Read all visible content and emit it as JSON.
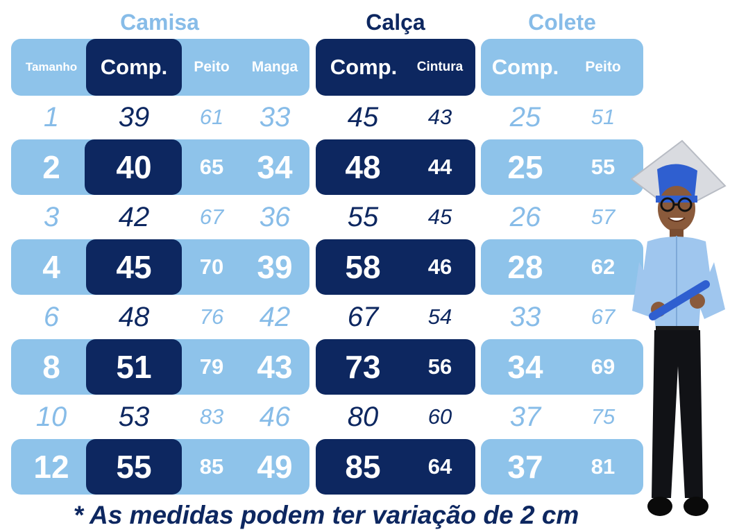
{
  "sections": {
    "camisa": "Camisa",
    "calca": "Calça",
    "colete": "Colete"
  },
  "headers": {
    "camisa": [
      "Tamanho",
      "Comp.",
      "Peito",
      "Manga"
    ],
    "calca": [
      "Comp.",
      "Cintura"
    ],
    "colete": [
      "Comp.",
      "Peito"
    ]
  },
  "table": {
    "columns": [
      "Tamanho",
      "Camisa Comp.",
      "Camisa Peito",
      "Camisa Manga",
      "Calça Comp.",
      "Calça Cintura",
      "Colete Comp.",
      "Colete Peito"
    ],
    "rows": [
      [
        "1",
        "39",
        "61",
        "33",
        "45",
        "43",
        "25",
        "51"
      ],
      [
        "2",
        "40",
        "65",
        "34",
        "48",
        "44",
        "25",
        "55"
      ],
      [
        "3",
        "42",
        "67",
        "36",
        "55",
        "45",
        "26",
        "57"
      ],
      [
        "4",
        "45",
        "70",
        "39",
        "58",
        "46",
        "28",
        "62"
      ],
      [
        "6",
        "48",
        "76",
        "42",
        "67",
        "54",
        "33",
        "67"
      ],
      [
        "8",
        "51",
        "79",
        "43",
        "73",
        "56",
        "34",
        "69"
      ],
      [
        "10",
        "53",
        "83",
        "46",
        "80",
        "60",
        "37",
        "75"
      ],
      [
        "12",
        "55",
        "85",
        "49",
        "85",
        "64",
        "37",
        "81"
      ]
    ]
  },
  "footer": "* As medidas podem ter variação de 2 cm",
  "colors": {
    "light_blue": "#8ec3ea",
    "navy": "#0d2760",
    "text_light": "#87bce8"
  },
  "illustration": "boy-in-graduation-outfit-icon"
}
